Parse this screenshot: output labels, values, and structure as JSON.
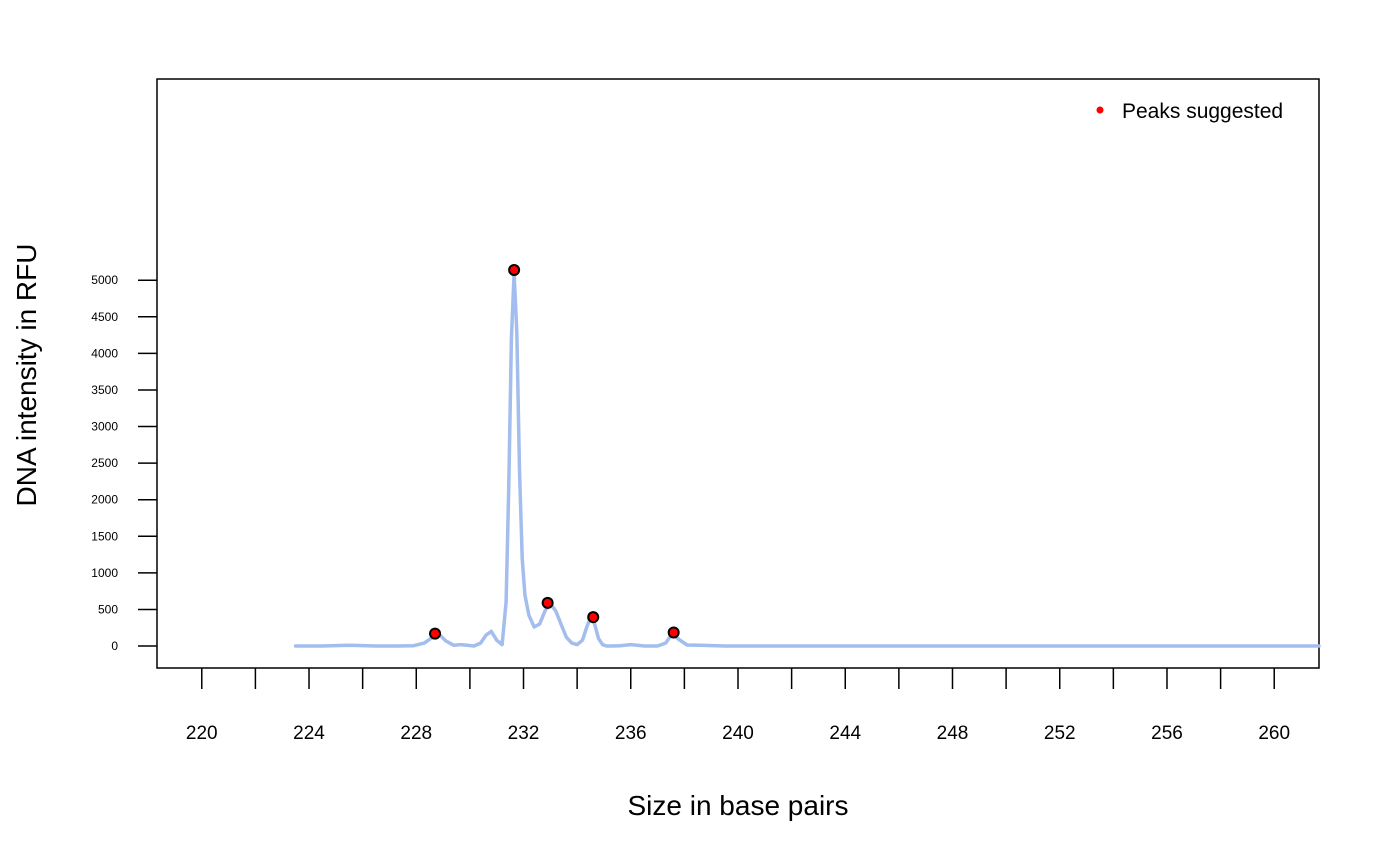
{
  "chart_data": {
    "type": "line",
    "xlabel": "Size in base pairs",
    "ylabel": "DNA intensity in RFU",
    "xlim": [
      218.33,
      261.67
    ],
    "ylim": [
      -300,
      7750
    ],
    "x_ticks_major": [
      220,
      222,
      224,
      226,
      228,
      230,
      232,
      234,
      236,
      238,
      240,
      242,
      244,
      246,
      248,
      250,
      252,
      254,
      256,
      258,
      260
    ],
    "x_tick_labels": [
      {
        "value": 220,
        "label": "220"
      },
      {
        "value": 224,
        "label": "224"
      },
      {
        "value": 228,
        "label": "228"
      },
      {
        "value": 232,
        "label": "232"
      },
      {
        "value": 236,
        "label": "236"
      },
      {
        "value": 240,
        "label": "240"
      },
      {
        "value": 244,
        "label": "244"
      },
      {
        "value": 248,
        "label": "248"
      },
      {
        "value": 252,
        "label": "252"
      },
      {
        "value": 256,
        "label": "256"
      },
      {
        "value": 260,
        "label": "260"
      }
    ],
    "y_tick_labels": [
      {
        "value": 0,
        "label": "0"
      },
      {
        "value": 500,
        "label": "500"
      },
      {
        "value": 1000,
        "label": "1000"
      },
      {
        "value": 1500,
        "label": "1500"
      },
      {
        "value": 2000,
        "label": "2000"
      },
      {
        "value": 2500,
        "label": "2500"
      },
      {
        "value": 3000,
        "label": "3000"
      },
      {
        "value": 3500,
        "label": "3500"
      },
      {
        "value": 4000,
        "label": "4000"
      },
      {
        "value": 4500,
        "label": "4500"
      },
      {
        "value": 5000,
        "label": "5000"
      }
    ],
    "grid": false,
    "legend": {
      "position": "top-right",
      "entries": [
        {
          "label": "Peaks suggested",
          "color": "#ff0000"
        }
      ]
    },
    "series": [
      {
        "color": "#a3bdee",
        "x": [
          223.5,
          224.5,
          225.5,
          226.5,
          227.3,
          227.9,
          228.3,
          228.6,
          228.85,
          229.1,
          229.4,
          229.65,
          229.9,
          230.15,
          230.4,
          230.6,
          230.8,
          231.0,
          231.2,
          231.35,
          231.45,
          231.55,
          231.65,
          231.75,
          231.85,
          231.95,
          232.05,
          232.2,
          232.4,
          232.6,
          232.8,
          233.0,
          233.2,
          233.4,
          233.6,
          233.8,
          234.0,
          234.2,
          234.35,
          234.5,
          234.65,
          234.8,
          234.95,
          235.1,
          235.3,
          235.6,
          236.0,
          236.5,
          237.0,
          237.3,
          237.55,
          237.8,
          238.1,
          238.6,
          239.5,
          241,
          244,
          248,
          252,
          256,
          260,
          261.67
        ],
        "y": [
          0,
          0,
          10,
          0,
          0,
          5,
          40,
          120,
          160,
          70,
          10,
          20,
          10,
          0,
          40,
          150,
          200,
          80,
          20,
          600,
          2200,
          4200,
          5100,
          4300,
          2400,
          1200,
          700,
          420,
          260,
          300,
          480,
          580,
          480,
          300,
          120,
          40,
          20,
          80,
          250,
          390,
          300,
          100,
          20,
          0,
          0,
          5,
          20,
          0,
          0,
          40,
          170,
          90,
          15,
          10,
          0,
          0,
          0,
          0,
          0,
          0,
          0,
          0
        ]
      }
    ],
    "peaks": {
      "name": "Peaks suggested",
      "color": "#ff0000",
      "x": [
        228.7,
        231.65,
        232.9,
        234.6,
        237.6
      ],
      "y": [
        170,
        5140,
        590,
        395,
        185
      ]
    }
  }
}
